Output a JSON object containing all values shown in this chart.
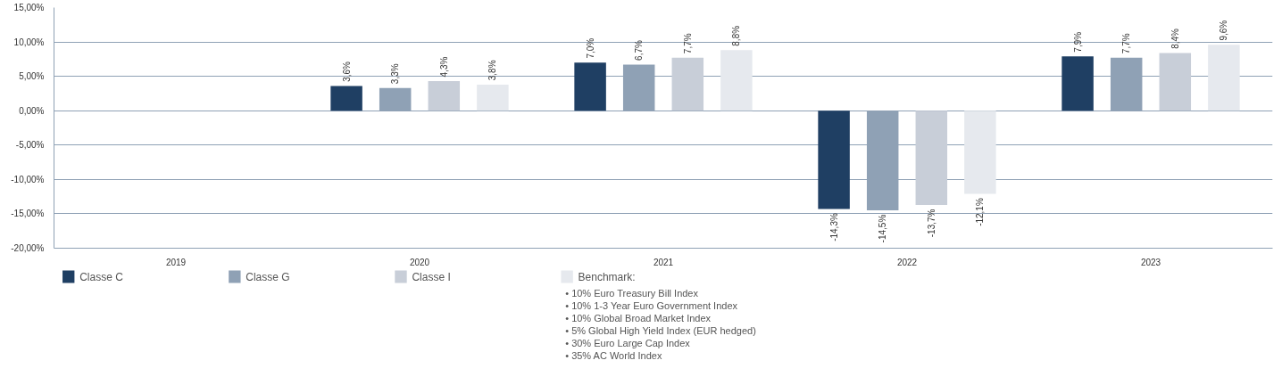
{
  "chart_data": {
    "type": "bar",
    "categories": [
      "2019",
      "2020",
      "2021",
      "2022",
      "2023"
    ],
    "series": [
      {
        "name": "Classe C",
        "color": "#1f3f63",
        "values": [
          null,
          3.6,
          7.0,
          -14.3,
          7.9
        ],
        "value_labels": [
          null,
          "3,6%",
          "7,0%",
          "-14,3%",
          "7,9%"
        ]
      },
      {
        "name": "Classe G",
        "color": "#8fa1b5",
        "values": [
          null,
          3.3,
          6.7,
          -14.5,
          7.7
        ],
        "value_labels": [
          null,
          "3,3%",
          "6,7%",
          "-14,5%",
          "7,7%"
        ]
      },
      {
        "name": "Classe I",
        "color": "#c8ced8",
        "values": [
          null,
          4.3,
          7.7,
          -13.7,
          8.4
        ],
        "value_labels": [
          null,
          "4,3%",
          "7,7%",
          "-13,7%",
          "8,4%"
        ]
      },
      {
        "name": "Benchmark:",
        "color": "#e6e9ee",
        "values": [
          null,
          3.8,
          8.8,
          -12.1,
          9.6
        ],
        "value_labels": [
          null,
          "3,8%",
          "8,8%",
          "-12,1%",
          "9,6%"
        ]
      }
    ],
    "ylim": [
      -20,
      15
    ],
    "yticks": [
      {
        "value": -20,
        "label": "-20,00%"
      },
      {
        "value": -15,
        "label": "-15,00%"
      },
      {
        "value": -10,
        "label": "-10,00%"
      },
      {
        "value": -5,
        "label": "-5,00%"
      },
      {
        "value": 0,
        "label": "0,00%"
      },
      {
        "value": 5,
        "label": "5,00%"
      },
      {
        "value": 10,
        "label": "10,00%"
      },
      {
        "value": 15,
        "label": "15,00%"
      }
    ],
    "grid": "y",
    "legend": "bottom",
    "annotations": [
      "• 10% Euro Treasury Bill Index",
      "• 10% 1-3 Year Euro Government Index",
      "• 10% Global Broad Market Index",
      "• 5% Global High Yield Index (EUR hedged)",
      "• 30% Euro Large Cap Index",
      "• 35% AC World Index"
    ]
  }
}
